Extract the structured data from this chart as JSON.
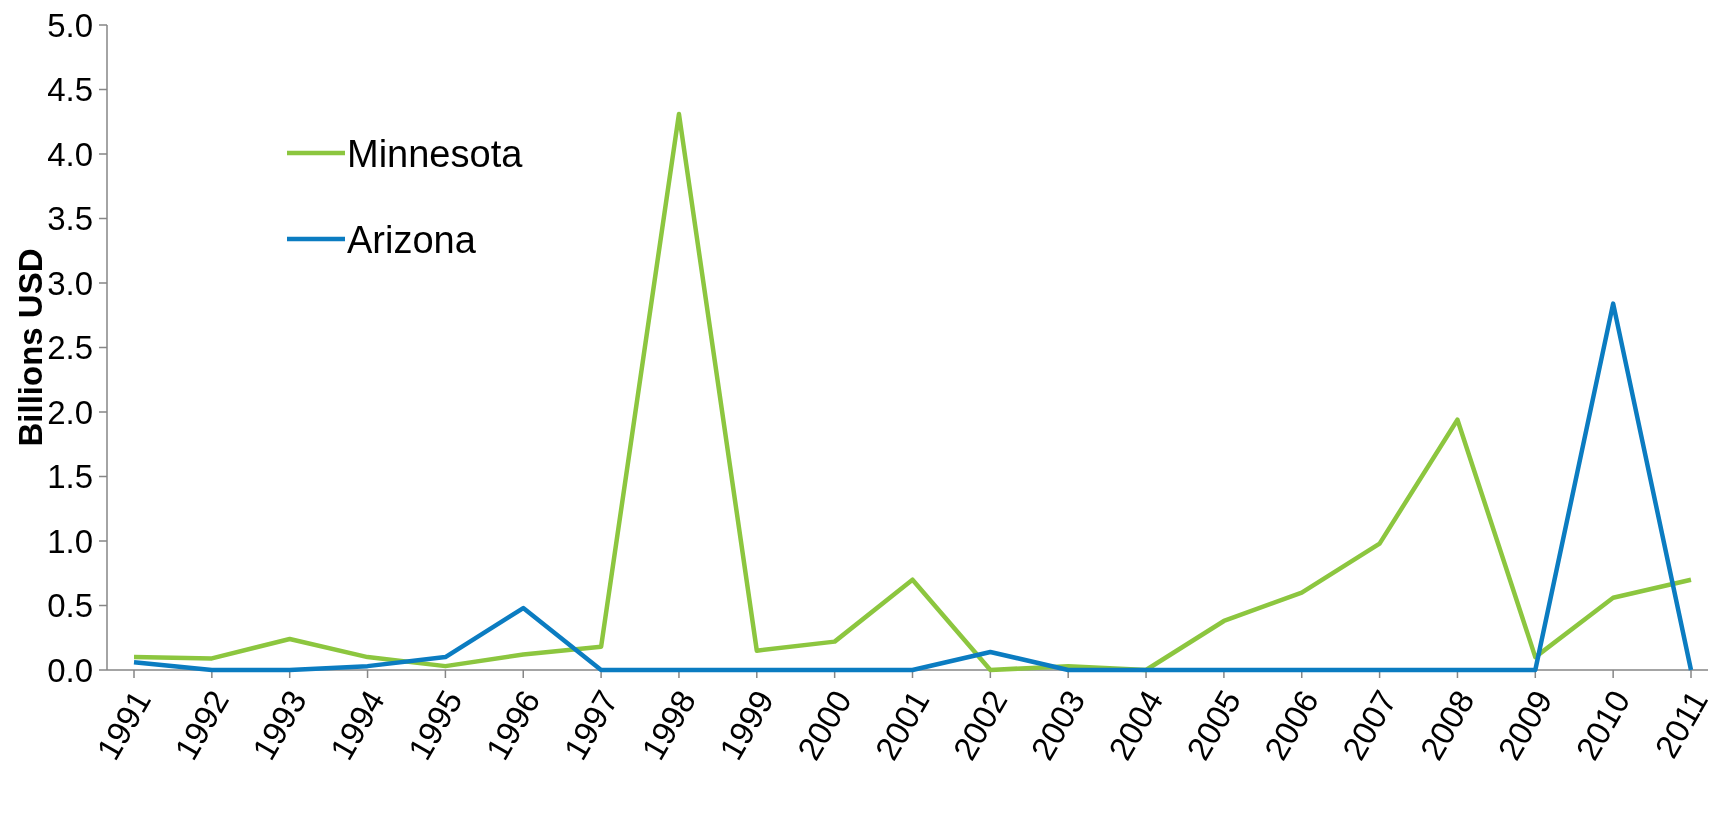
{
  "chart_data": {
    "type": "line",
    "ylabel": "Billions USD",
    "categories": [
      "1991",
      "1992",
      "1993",
      "1994",
      "1995",
      "1996",
      "1997",
      "1998",
      "1999",
      "2000",
      "2001",
      "2002",
      "2003",
      "2004",
      "2005",
      "2006",
      "2007",
      "2008",
      "2009",
      "2010",
      "2011"
    ],
    "series": [
      {
        "name": "Minnesota",
        "color": "#8cc63f",
        "values": [
          0.1,
          0.09,
          0.24,
          0.1,
          0.03,
          0.12,
          0.18,
          4.31,
          0.15,
          0.22,
          0.7,
          0.0,
          0.03,
          0.0,
          0.38,
          0.6,
          0.98,
          1.94,
          0.1,
          0.56,
          0.7
        ]
      },
      {
        "name": "Arizona",
        "color": "#0b7cc1",
        "values": [
          0.06,
          0.0,
          0.0,
          0.03,
          0.1,
          0.48,
          0.0,
          0.0,
          0.0,
          0.0,
          0.0,
          0.14,
          0.0,
          0.0,
          0.0,
          0.0,
          0.0,
          0.0,
          0.0,
          2.84,
          0.0
        ]
      }
    ],
    "ylim": [
      0,
      5
    ],
    "yticks": [
      {
        "value": 0,
        "label": "0.0"
      },
      {
        "value": 0.5,
        "label": "0.5"
      },
      {
        "value": 1,
        "label": "1.0"
      },
      {
        "value": 1.5,
        "label": "1.5"
      },
      {
        "value": 2,
        "label": "2.0"
      },
      {
        "value": 2.5,
        "label": "2.5"
      },
      {
        "value": 3,
        "label": "3.0"
      },
      {
        "value": 3.5,
        "label": "3.5"
      },
      {
        "value": 4,
        "label": "4.0"
      },
      {
        "value": 4.5,
        "label": "4.5"
      },
      {
        "value": 5,
        "label": "5.0"
      }
    ],
    "grid": false,
    "legend": "top left",
    "marker": "none",
    "line_style": "solid"
  }
}
